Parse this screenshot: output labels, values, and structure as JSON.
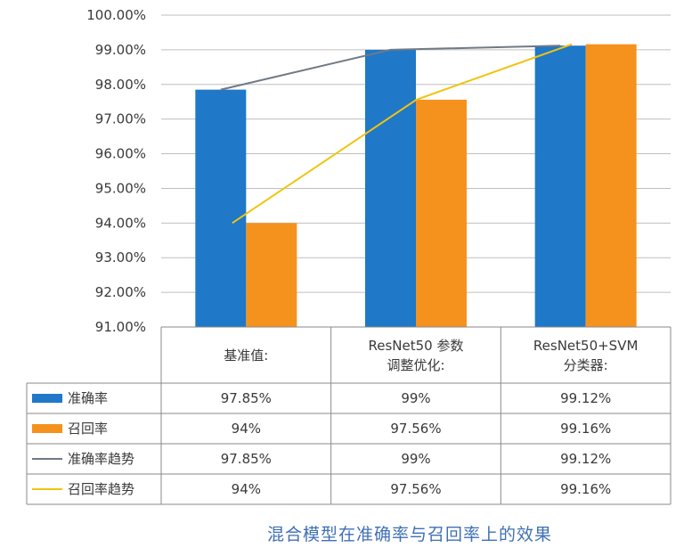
{
  "chart_data": {
    "type": "bar",
    "title": "混合模型在准确率与召回率上的效果",
    "ylim": [
      91,
      100
    ],
    "y_ticks": [
      "91.00%",
      "92.00%",
      "93.00%",
      "94.00%",
      "95.00%",
      "96.00%",
      "97.00%",
      "98.00%",
      "99.00%",
      "100.00%"
    ],
    "categories": [
      [
        "基准值:"
      ],
      [
        "ResNet50 参数",
        "调整优化:"
      ],
      [
        "ResNet50+SVM",
        "分类器:"
      ]
    ],
    "series": [
      {
        "name": "准确率",
        "kind": "bar",
        "color": "#1f78c8",
        "values": [
          97.85,
          99,
          99.12
        ],
        "labels": [
          "97.85%",
          "99%",
          "99.12%"
        ]
      },
      {
        "name": "召回率",
        "kind": "bar",
        "color": "#f5921e",
        "values": [
          94,
          97.56,
          99.16
        ],
        "labels": [
          "94%",
          "97.56%",
          "99.16%"
        ]
      },
      {
        "name": "准确率趋势",
        "kind": "line",
        "color": "#707a84",
        "values": [
          97.85,
          99,
          99.12
        ],
        "labels": [
          "97.85%",
          "99%",
          "99.12%"
        ]
      },
      {
        "name": "召回率趋势",
        "kind": "line",
        "color": "#f2c30f",
        "values": [
          94,
          97.56,
          99.16
        ],
        "labels": [
          "94%",
          "97.56%",
          "99.16%"
        ]
      }
    ]
  }
}
